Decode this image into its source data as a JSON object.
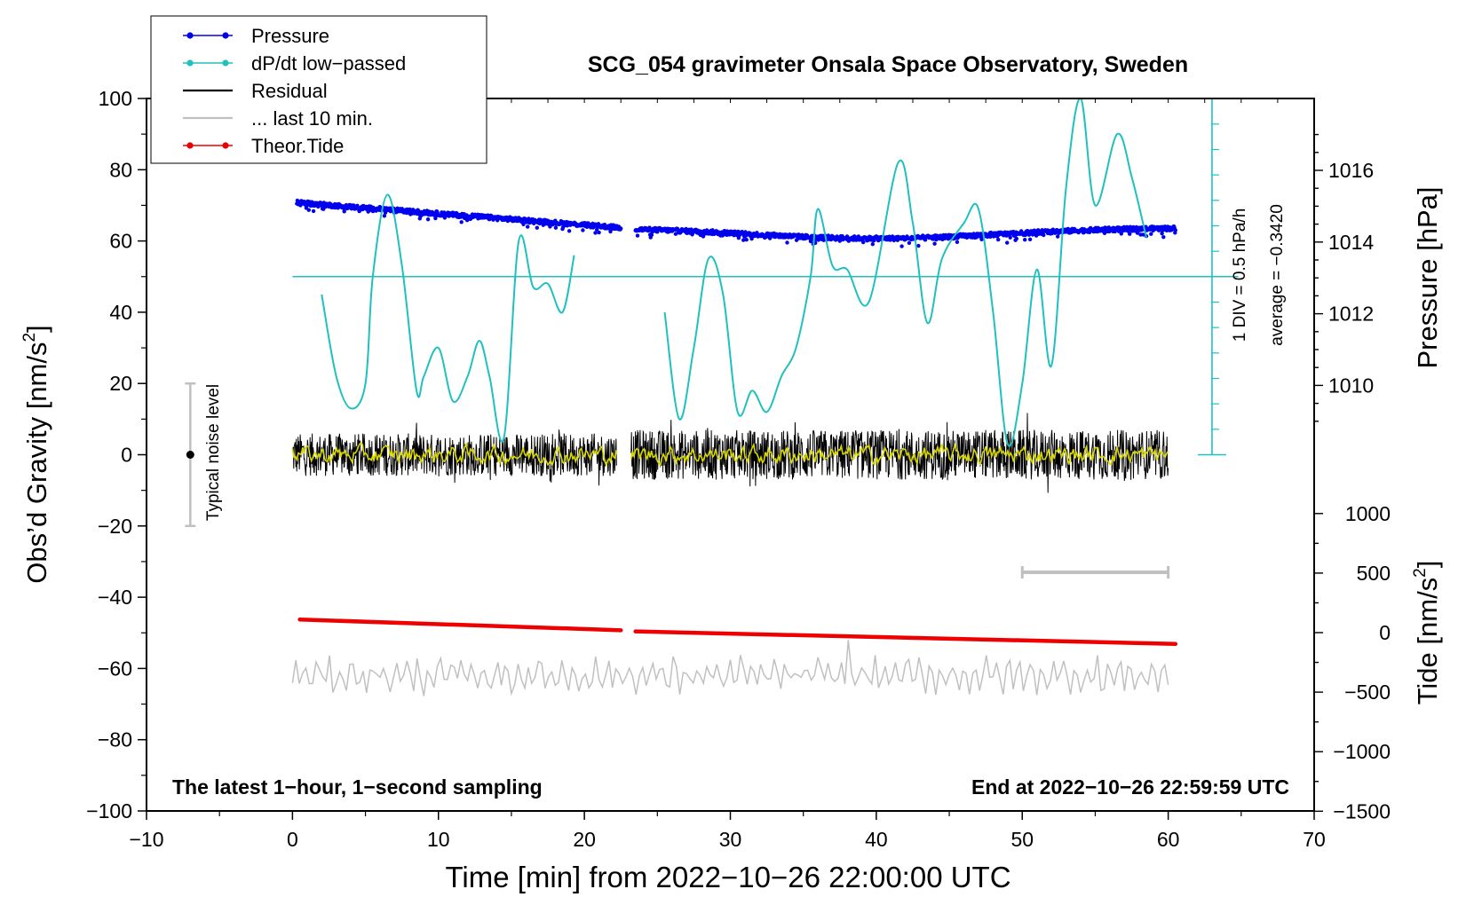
{
  "chart_data": {
    "type": "line",
    "title": "SCG_054 gravimeter Onsala Space Observatory, Sweden",
    "xlabel": "Time [min] from 2022−10−26 22:00:00 UTC",
    "ylabel_left": "Obs'd Gravity [nm/s²]",
    "ylabel_left_main": "Obs’d Gravity [nm/s",
    "ylabel_left_sup": "2",
    "ylabel_left_end": "]",
    "ylabel_pressure": "Pressure [hPa]",
    "ylabel_tide": "Tide [nm/s²]",
    "ylabel_tide_main": "Tide [nm/s",
    "ylabel_tide_sup": "2",
    "ylabel_tide_end": "]",
    "xlim": [
      -10,
      70
    ],
    "ylim": [
      -100,
      100
    ],
    "x_ticks": [
      -10,
      0,
      10,
      20,
      30,
      40,
      50,
      60,
      70
    ],
    "x_tick_labels": [
      "−10",
      "0",
      "10",
      "20",
      "30",
      "40",
      "50",
      "60",
      "70"
    ],
    "y_ticks": [
      -100,
      -80,
      -60,
      -40,
      -20,
      0,
      20,
      40,
      60,
      80,
      100
    ],
    "y_tick_labels": [
      "−100",
      "−80",
      "−60",
      "−40",
      "−20",
      "0",
      "20",
      "40",
      "60",
      "80",
      "100"
    ],
    "pressure_axis": {
      "ticks": [
        1010,
        1012,
        1014,
        1016
      ],
      "tick_labels": [
        "1010",
        "1012",
        "1014",
        "1016"
      ],
      "range_hint": [
        1003.0,
        1018.0
      ]
    },
    "tide_axis": {
      "ticks": [
        -1500,
        -1000,
        -500,
        0,
        500,
        1000
      ],
      "tick_labels": [
        "−1500",
        "−1000",
        "−500",
        "0",
        "500",
        "1000"
      ],
      "range_hint": [
        -1500,
        1000
      ]
    },
    "legend": {
      "position": "top-left",
      "entries": [
        {
          "label": "Pressure",
          "color": "#0000ee",
          "marker": "dot"
        },
        {
          "label": "dP/dt low−passed",
          "color": "#20c0c0",
          "marker": "dot"
        },
        {
          "label": "Residual",
          "color": "#000000",
          "marker": "line"
        },
        {
          "label": "... last 10 min.",
          "color": "#c0c0c0",
          "marker": "line"
        },
        {
          "label": "Theor.Tide",
          "color": "#ee0000",
          "marker": "dot"
        }
      ]
    },
    "series": [
      {
        "name": "Pressure",
        "axis": "pressure_hPa",
        "color": "#0000ee",
        "segments": [
          {
            "x_start": 0.3,
            "x_end": 22.5,
            "y_start": 1015.1,
            "y_end": 1014.4
          },
          {
            "x_start": 23.5,
            "x_end": 60.5,
            "y_start": 1014.4,
            "y_end": 1014.4,
            "dip": {
              "x": 40,
              "y": 1014.1
            }
          }
        ]
      },
      {
        "name": "dP/dt low−passed",
        "axis": "dpdt_div",
        "color": "#20c0c0",
        "average_line_y_gravity_units": 50,
        "average": -0.342,
        "segments": [
          {
            "x": [
              2,
              3,
              4,
              5,
              5.5,
              6.5,
              7.5,
              8.5,
              9,
              10,
              11,
              12,
              12.8,
              13.5,
              14.5,
              15.5,
              16.5,
              17.5,
              18.5,
              19.3
            ],
            "y": [
              45,
              22,
              13,
              20,
              50,
              73,
              53,
              18,
              22,
              30,
              15,
              22,
              32,
              22,
              5,
              60,
              47,
              48,
              40,
              56
            ]
          },
          {
            "x": [
              25.5,
              26.5,
              27.5,
              28.5,
              29.5,
              30.5,
              31.5,
              32.5,
              33.5,
              34.5,
              35.5,
              36,
              37,
              38,
              39.5,
              41.5,
              42.5,
              43.5,
              44.5,
              46,
              47,
              48,
              49,
              50,
              51,
              52,
              53,
              54,
              55,
              56.5,
              57.5,
              58.5
            ],
            "y": [
              40,
              10,
              30,
              55,
              45,
              12,
              18,
              12,
              22,
              30,
              50,
              69,
              53,
              52,
              43,
              82,
              65,
              37,
              55,
              65,
              69,
              40,
              3,
              20,
              52,
              25,
              75,
              100,
              70,
              90,
              78,
              61
            ]
          }
        ]
      },
      {
        "name": "Residual",
        "axis": "gravity_nm_s2",
        "color": "#000000",
        "segments": [
          {
            "x_start": 0,
            "x_end": 22.2,
            "mean": 0,
            "amplitude": 6
          },
          {
            "x_start": 23.2,
            "x_end": 60.0,
            "mean": 0,
            "amplitude": 7
          }
        ]
      },
      {
        "name": "Residual smoothed",
        "axis": "gravity_nm_s2",
        "color": "#d8d800",
        "segments": [
          {
            "x_start": 0,
            "x_end": 22.2,
            "mean": 0,
            "amplitude": 2
          },
          {
            "x_start": 23.2,
            "x_end": 60.0,
            "mean": 0,
            "amplitude": 2
          }
        ]
      },
      {
        "name": "... last 10 min.",
        "axis": "gravity_nm_s2",
        "color": "#c0c0c0",
        "segments": [
          {
            "x_start": 0,
            "x_end": 60,
            "mean": -62,
            "amplitude": 4
          }
        ]
      },
      {
        "name": "Theor.Tide",
        "axis": "tide_nm_s2",
        "color": "#ee0000",
        "segments": [
          {
            "x": [
              0.5,
              22.5
            ],
            "y": [
              110,
              20
            ]
          },
          {
            "x": [
              23.5,
              60.5
            ],
            "y": [
              10,
              -95
            ]
          }
        ]
      }
    ],
    "annotations": {
      "noise_label": "Typical noise level",
      "noise_bar": {
        "x": -7,
        "y_center": 0,
        "half_range": 20
      },
      "last10_bar": {
        "x_start": 50,
        "x_end": 60,
        "y": -33
      },
      "dpdt_scale": {
        "label1": "1 DIV = 0.5 hPa/h",
        "label2": "average = −0.3420",
        "x": 63,
        "y_bottom": 0,
        "y_top": 100,
        "div_step": 7.14
      },
      "bottom_left": "The latest 1−hour, 1−second sampling",
      "bottom_right": "End at 2022−10−26 22:59:59 UTC"
    }
  },
  "colors": {
    "pressure": "#0000ee",
    "dpdt": "#20c0c0",
    "residual": "#000000",
    "smoothed": "#d8d800",
    "last10": "#c0c0c0",
    "tide": "#ee0000"
  }
}
